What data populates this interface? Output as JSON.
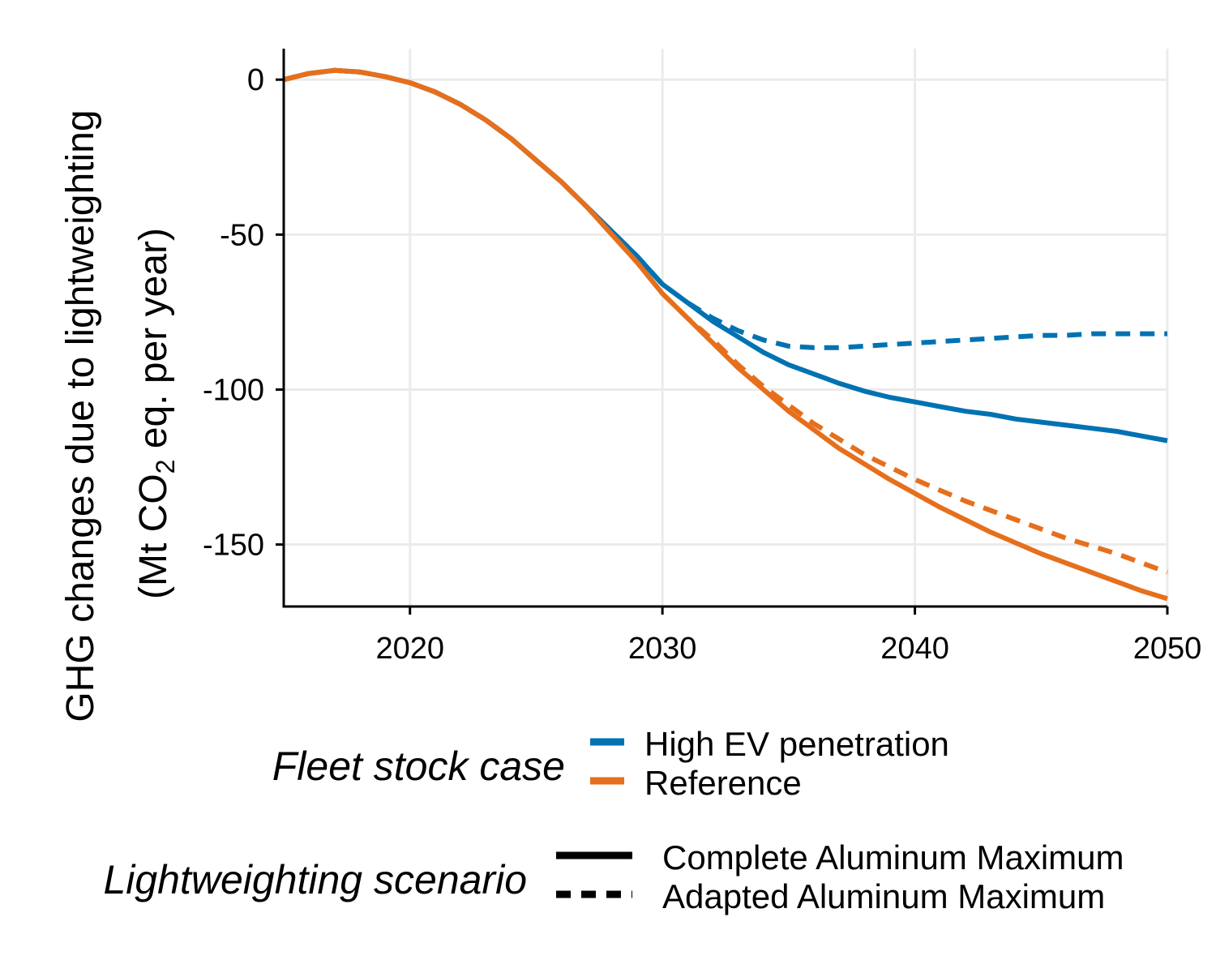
{
  "chart_data": {
    "type": "line",
    "ylabel_line1": "GHG changes due to lightweighting",
    "ylabel_line2_prefix": "(Mt CO",
    "ylabel_line2_sub": "2",
    "ylabel_line2_suffix": " eq. per year)",
    "xlim": [
      2015,
      2050
    ],
    "ylim": [
      -170,
      10
    ],
    "x_ticks": [
      2020,
      2030,
      2040,
      2050
    ],
    "y_ticks": [
      0,
      -50,
      -100,
      -150
    ],
    "grid": true,
    "colors": {
      "High EV penetration": "#0072B2",
      "Reference": "#E66F1C"
    },
    "legend_fleet": {
      "title": "Fleet stock case",
      "items": [
        "High EV penetration",
        "Reference"
      ]
    },
    "legend_scenario": {
      "title": "Lightweighting scenario",
      "items": [
        "Complete Aluminum Maximum",
        "Adapted Aluminum Maximum"
      ]
    },
    "series": [
      {
        "fleet": "High EV penetration",
        "scenario": "Complete Aluminum Maximum",
        "x": [
          2015,
          2016,
          2017,
          2018,
          2019,
          2020,
          2021,
          2022,
          2023,
          2024,
          2025,
          2026,
          2027,
          2028,
          2029,
          2030,
          2031,
          2032,
          2033,
          2034,
          2035,
          2036,
          2037,
          2038,
          2039,
          2040,
          2041,
          2042,
          2043,
          2044,
          2045,
          2046,
          2047,
          2048,
          2049,
          2050
        ],
        "y": [
          0,
          2,
          3,
          2.5,
          1,
          -1,
          -4,
          -8,
          -13,
          -19,
          -26,
          -33,
          -41,
          -49,
          -57,
          -66,
          -72,
          -78,
          -83,
          -88,
          -92,
          -95,
          -98,
          -100.5,
          -102.5,
          -104,
          -105.5,
          -107,
          -108,
          -109.5,
          -110.5,
          -111.5,
          -112.5,
          -113.5,
          -115,
          -116.5
        ]
      },
      {
        "fleet": "High EV penetration",
        "scenario": "Adapted Aluminum Maximum",
        "x": [
          2015,
          2016,
          2017,
          2018,
          2019,
          2020,
          2021,
          2022,
          2023,
          2024,
          2025,
          2026,
          2027,
          2028,
          2029,
          2030,
          2031,
          2032,
          2033,
          2034,
          2035,
          2036,
          2037,
          2038,
          2039,
          2040,
          2041,
          2042,
          2043,
          2044,
          2045,
          2046,
          2047,
          2048,
          2049,
          2050
        ],
        "y": [
          0,
          2,
          3,
          2.5,
          1,
          -1,
          -4,
          -8,
          -13,
          -19,
          -26,
          -33,
          -41,
          -49,
          -57,
          -66,
          -72,
          -77,
          -81,
          -84,
          -86,
          -86.5,
          -86.5,
          -86,
          -85.5,
          -85,
          -84.5,
          -84,
          -83.5,
          -83,
          -82.5,
          -82.5,
          -82,
          -82,
          -82,
          -82
        ]
      },
      {
        "fleet": "Reference",
        "scenario": "Complete Aluminum Maximum",
        "x": [
          2015,
          2016,
          2017,
          2018,
          2019,
          2020,
          2021,
          2022,
          2023,
          2024,
          2025,
          2026,
          2027,
          2028,
          2029,
          2030,
          2031,
          2032,
          2033,
          2034,
          2035,
          2036,
          2037,
          2038,
          2039,
          2040,
          2041,
          2042,
          2043,
          2044,
          2045,
          2046,
          2047,
          2048,
          2049,
          2050
        ],
        "y": [
          0,
          2,
          3,
          2.5,
          1,
          -1,
          -4,
          -8,
          -13,
          -19,
          -26,
          -33,
          -41,
          -50,
          -59,
          -69,
          -77,
          -85,
          -93,
          -100,
          -107,
          -113,
          -119,
          -124,
          -129,
          -133.5,
          -138,
          -142,
          -146,
          -149.5,
          -153,
          -156,
          -159,
          -162,
          -165,
          -167.5
        ]
      },
      {
        "fleet": "Reference",
        "scenario": "Adapted Aluminum Maximum",
        "x": [
          2015,
          2016,
          2017,
          2018,
          2019,
          2020,
          2021,
          2022,
          2023,
          2024,
          2025,
          2026,
          2027,
          2028,
          2029,
          2030,
          2031,
          2032,
          2033,
          2034,
          2035,
          2036,
          2037,
          2038,
          2039,
          2040,
          2041,
          2042,
          2043,
          2044,
          2045,
          2046,
          2047,
          2048,
          2049,
          2050
        ],
        "y": [
          0,
          2,
          3,
          2.5,
          1,
          -1,
          -4,
          -8,
          -13,
          -19,
          -26,
          -33,
          -41,
          -50,
          -59,
          -69,
          -77,
          -84,
          -92,
          -99,
          -105,
          -111,
          -116,
          -121,
          -125,
          -129,
          -132.5,
          -136,
          -139,
          -142,
          -145,
          -148,
          -150.5,
          -153,
          -156,
          -159
        ]
      }
    ]
  }
}
